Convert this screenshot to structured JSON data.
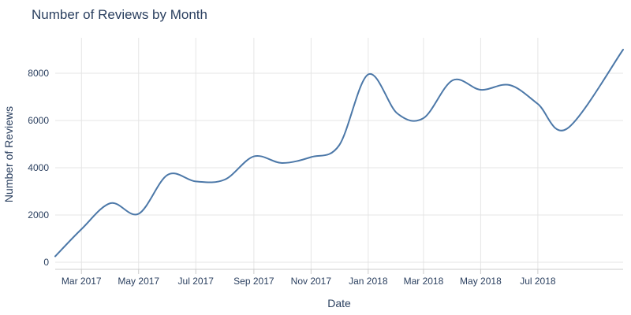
{
  "chart_data": {
    "type": "line",
    "title": "Number of Reviews by Month",
    "xlabel": "Date",
    "ylabel": "Number of Reviews",
    "x_ticks": [
      {
        "date": "2017-03-01",
        "label": "Mar 2017"
      },
      {
        "date": "2017-05-01",
        "label": "May 2017"
      },
      {
        "date": "2017-07-01",
        "label": "Jul 2017"
      },
      {
        "date": "2017-09-01",
        "label": "Sep 2017"
      },
      {
        "date": "2017-11-01",
        "label": "Nov 2017"
      },
      {
        "date": "2018-01-01",
        "label": "Jan 2018"
      },
      {
        "date": "2018-03-01",
        "label": "Mar 2018"
      },
      {
        "date": "2018-05-01",
        "label": "May 2018"
      },
      {
        "date": "2018-07-01",
        "label": "Jul 2018"
      }
    ],
    "y_ticks": [
      0,
      2000,
      4000,
      6000,
      8000
    ],
    "xlim": [
      "2017-02-01",
      "2018-09-30"
    ],
    "ylim": [
      -300,
      9500
    ],
    "grid": true,
    "series": [
      {
        "color": "#4c78a8",
        "x": [
          "2017-02-01",
          "2017-03-01",
          "2017-04-01",
          "2017-05-01",
          "2017-06-01",
          "2017-07-01",
          "2017-08-01",
          "2017-09-01",
          "2017-10-01",
          "2017-11-01",
          "2017-12-01",
          "2018-01-01",
          "2018-02-01",
          "2018-03-01",
          "2018-04-01",
          "2018-05-01",
          "2018-06-01",
          "2018-07-01",
          "2018-08-01",
          "2018-09-30"
        ],
        "y": [
          250,
          1400,
          2500,
          2050,
          3700,
          3420,
          3500,
          4480,
          4200,
          4450,
          4950,
          7950,
          6300,
          6100,
          7700,
          7300,
          7500,
          6700,
          5650,
          9000
        ]
      }
    ]
  }
}
